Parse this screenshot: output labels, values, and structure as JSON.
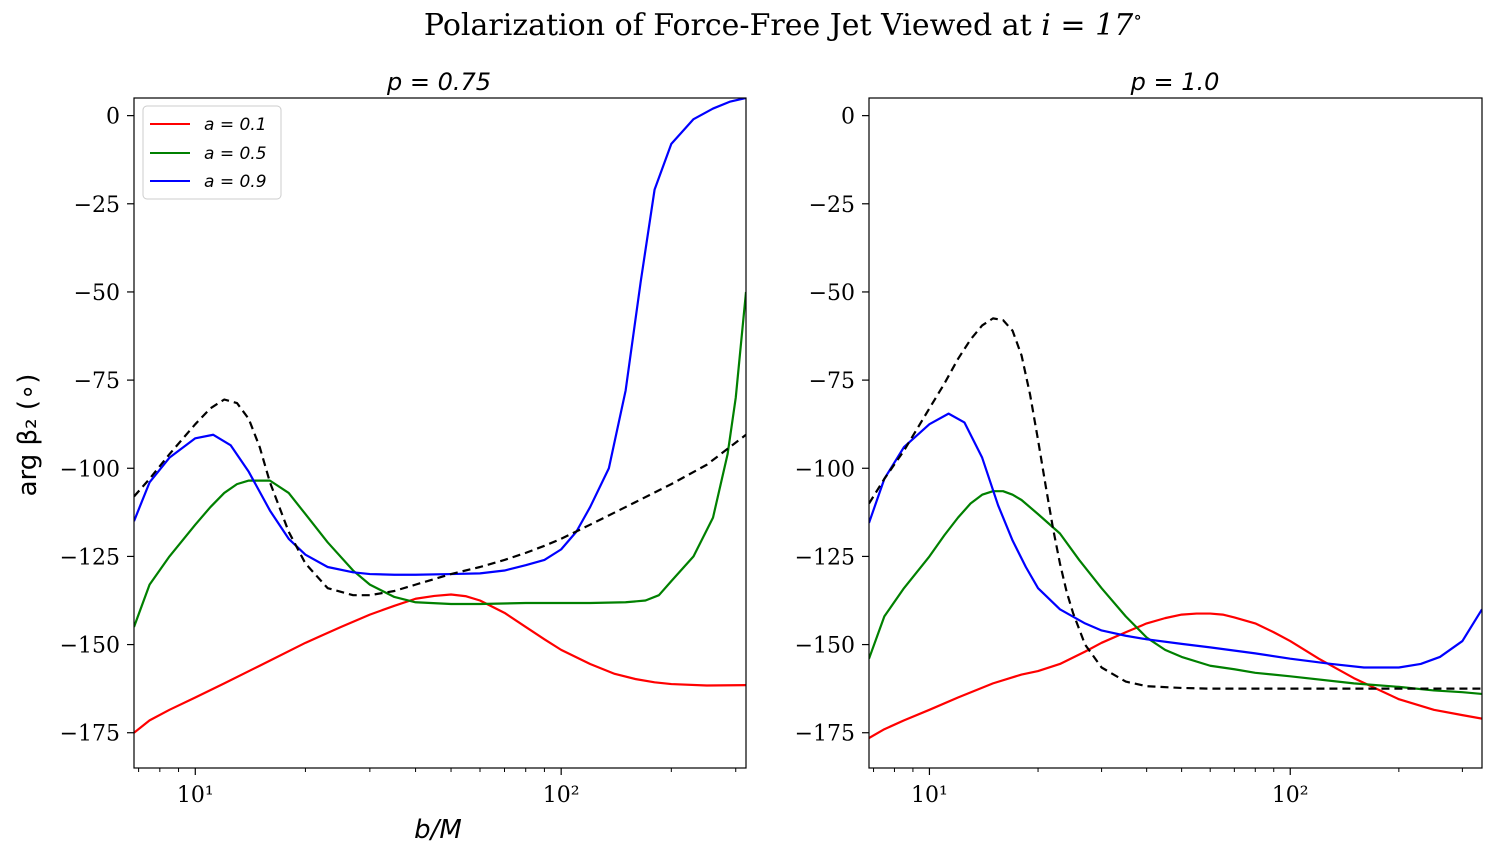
{
  "title_prefix": "Polarization of Force-Free Jet Viewed at ",
  "title_math": "i = 17",
  "title_degree": "∘",
  "colors": {
    "a01": "#ff0000",
    "a05": "#008000",
    "a09": "#0000ff",
    "dashed": "#000000"
  },
  "legend": [
    {
      "label": "a = 0.1",
      "color": "#ff0000"
    },
    {
      "label": "a = 0.5",
      "color": "#008000"
    },
    {
      "label": "a = 0.9",
      "color": "#0000ff"
    }
  ],
  "chart_data": [
    {
      "type": "line",
      "title": "p = 0.75",
      "xlabel": "b/M",
      "ylabel": "arg β₂ (∘)",
      "xscale": "log",
      "xlim": [
        6.8,
        320
      ],
      "ylim": [
        -185,
        5
      ],
      "yticks": [
        0,
        -25,
        -50,
        -75,
        -100,
        -125,
        -150,
        -175
      ],
      "ytick_labels": [
        "0",
        "−25",
        "−50",
        "−75",
        "−100",
        "−125",
        "−150",
        "−175"
      ],
      "xticks": [
        10,
        100
      ],
      "xtick_labels": [
        "10¹",
        "10²"
      ],
      "legend_position": "upper-left",
      "series": [
        {
          "name": "a = 0.1",
          "color": "#ff0000",
          "dash": false,
          "x": [
            6.8,
            7.5,
            8.5,
            10,
            12,
            15,
            20,
            25,
            30,
            35,
            40,
            45,
            50,
            55,
            60,
            70,
            80,
            90,
            100,
            120,
            140,
            160,
            180,
            200,
            250,
            320
          ],
          "y": [
            -175,
            -171.5,
            -168.5,
            -165,
            -161,
            -156,
            -149.5,
            -145,
            -141.5,
            -139,
            -137,
            -136.2,
            -135.8,
            -136.3,
            -137.5,
            -141,
            -145,
            -148.5,
            -151.5,
            -155.5,
            -158.3,
            -159.8,
            -160.7,
            -161.2,
            -161.6,
            -161.5
          ]
        },
        {
          "name": "a = 0.5",
          "color": "#008000",
          "dash": false,
          "x": [
            6.8,
            7.5,
            8.5,
            10,
            11,
            12,
            13,
            14,
            15,
            16,
            18,
            20,
            23,
            27,
            30,
            35,
            40,
            50,
            60,
            80,
            100,
            120,
            150,
            170,
            185,
            200,
            230,
            260,
            285,
            300,
            320
          ],
          "y": [
            -145,
            -133,
            -125,
            -116,
            -111,
            -107,
            -104.5,
            -103.5,
            -103.5,
            -103.5,
            -107,
            -113,
            -121,
            -129,
            -133,
            -136.5,
            -138,
            -138.5,
            -138.5,
            -138.2,
            -138.2,
            -138.2,
            -138,
            -137.5,
            -136,
            -132,
            -125,
            -114,
            -96,
            -80,
            -50
          ]
        },
        {
          "name": "a = 0.9",
          "color": "#0000ff",
          "dash": false,
          "x": [
            6.8,
            7.5,
            8.5,
            10,
            11.2,
            12.5,
            14,
            16,
            18,
            20,
            23,
            27,
            30,
            35,
            40,
            50,
            60,
            70,
            80,
            90,
            100,
            110,
            120,
            135,
            150,
            165,
            180,
            200,
            230,
            260,
            290,
            320
          ],
          "y": [
            -115,
            -104,
            -97,
            -91.5,
            -90.5,
            -93.5,
            -101,
            -112,
            -120,
            -124.5,
            -128,
            -129.5,
            -130,
            -130.2,
            -130.2,
            -130,
            -129.8,
            -129,
            -127.5,
            -126,
            -123,
            -118,
            -111,
            -100,
            -78,
            -47,
            -21,
            -8,
            -1,
            2,
            4,
            5
          ]
        },
        {
          "name": "",
          "color": "#000000",
          "dash": true,
          "x": [
            6.8,
            7.5,
            8.5,
            10,
            11,
            12,
            13,
            14,
            15,
            16,
            18,
            20,
            23,
            27,
            30,
            35,
            40,
            50,
            60,
            70,
            80,
            90,
            100,
            120,
            150,
            200,
            250,
            320
          ],
          "y": [
            -108,
            -103,
            -96,
            -87.5,
            -83,
            -80.5,
            -81.5,
            -86,
            -94,
            -104,
            -118,
            -127,
            -134,
            -136,
            -136,
            -134.8,
            -133,
            -130,
            -128,
            -126,
            -124,
            -122,
            -120,
            -116,
            -111,
            -104.5,
            -99,
            -90.5
          ]
        }
      ]
    },
    {
      "type": "line",
      "title": "p = 1.0",
      "xlabel": "",
      "ylabel": "",
      "xscale": "log",
      "xlim": [
        6.8,
        340
      ],
      "ylim": [
        -185,
        5
      ],
      "yticks": [
        0,
        -25,
        -50,
        -75,
        -100,
        -125,
        -150,
        -175
      ],
      "ytick_labels": [
        "0",
        "−25",
        "−50",
        "−75",
        "−100",
        "−125",
        "−150",
        "−175"
      ],
      "xticks": [
        10,
        100
      ],
      "xtick_labels": [
        "10¹",
        "10²"
      ],
      "series": [
        {
          "name": "a = 0.1",
          "color": "#ff0000",
          "dash": false,
          "x": [
            6.8,
            7.5,
            8.5,
            10,
            12,
            15,
            18,
            20,
            23,
            27,
            30,
            35,
            40,
            45,
            50,
            55,
            60,
            65,
            70,
            80,
            90,
            100,
            120,
            150,
            200,
            250,
            300,
            340
          ],
          "y": [
            -176.5,
            -174,
            -171.5,
            -168.5,
            -165,
            -161,
            -158.5,
            -157.5,
            -155.5,
            -152,
            -149.5,
            -146.5,
            -144,
            -142.5,
            -141.5,
            -141.2,
            -141.2,
            -141.5,
            -142.3,
            -144,
            -146.5,
            -149,
            -154,
            -159.5,
            -165.5,
            -168.5,
            -170,
            -171
          ]
        },
        {
          "name": "a = 0.5",
          "color": "#008000",
          "dash": false,
          "x": [
            6.8,
            7.5,
            8.5,
            10,
            11,
            12,
            13,
            14,
            15,
            16,
            17,
            18,
            20,
            23,
            26,
            30,
            35,
            40,
            45,
            50,
            60,
            70,
            80,
            100,
            150,
            200,
            250,
            300,
            340
          ],
          "y": [
            -154,
            -142,
            -134,
            -125,
            -119,
            -114,
            -110,
            -107.5,
            -106.5,
            -106.5,
            -107.5,
            -109,
            -113,
            -118.5,
            -126,
            -134,
            -142,
            -148,
            -151.5,
            -153.5,
            -156,
            -157,
            -158,
            -159,
            -161,
            -162,
            -163,
            -163.5,
            -164
          ]
        },
        {
          "name": "a = 0.9",
          "color": "#0000ff",
          "dash": false,
          "x": [
            6.8,
            7.5,
            8.5,
            10,
            11.3,
            12.5,
            14,
            15.5,
            17,
            18.5,
            20,
            23,
            27,
            30,
            35,
            40,
            50,
            60,
            80,
            100,
            130,
            160,
            200,
            230,
            260,
            300,
            340
          ],
          "y": [
            -115.5,
            -103,
            -94,
            -87.5,
            -84.5,
            -87,
            -97,
            -110.5,
            -120.5,
            -128,
            -134,
            -140,
            -144,
            -146,
            -147.5,
            -148.5,
            -149.8,
            -150.8,
            -152.5,
            -154,
            -155.5,
            -156.5,
            -156.5,
            -155.5,
            -153.5,
            -149,
            -140
          ]
        },
        {
          "name": "",
          "color": "#000000",
          "dash": true,
          "x": [
            6.8,
            7.5,
            8.5,
            10,
            11,
            12,
            13,
            14,
            15,
            16,
            17,
            18,
            19,
            20,
            21,
            22,
            23,
            24,
            25,
            27,
            30,
            35,
            40,
            50,
            60,
            80,
            100,
            150,
            200,
            300,
            340
          ],
          "y": [
            -110,
            -103,
            -95,
            -83,
            -76,
            -69,
            -63.5,
            -59.5,
            -57.5,
            -58,
            -61,
            -68,
            -79,
            -92,
            -105,
            -117,
            -127,
            -135,
            -141,
            -150,
            -156.5,
            -160.5,
            -161.8,
            -162.3,
            -162.5,
            -162.5,
            -162.5,
            -162.5,
            -162.5,
            -162.5,
            -162.5
          ]
        }
      ]
    }
  ]
}
